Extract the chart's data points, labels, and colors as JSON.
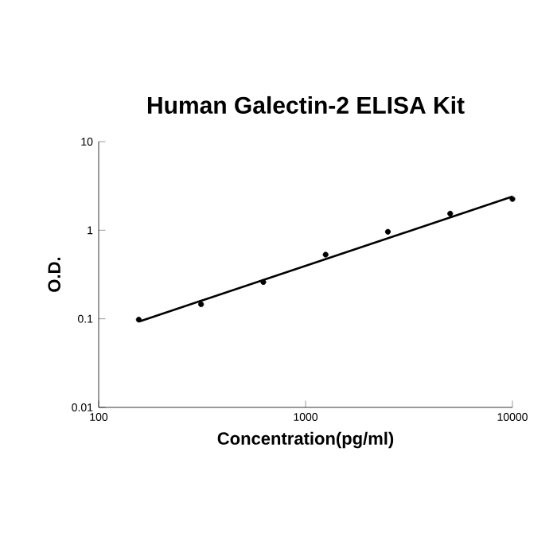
{
  "chart_data": {
    "type": "scatter",
    "title": "Human Galectin-2 ELISA Kit",
    "xlabel": "Concentration(pg/ml)",
    "ylabel": "O.D.",
    "log": "xy",
    "grid": false,
    "xlim": [
      100,
      10000
    ],
    "xticks": [
      100,
      1000,
      10000
    ],
    "ylim": [
      0.01,
      10
    ],
    "yticks": [
      0.01,
      0.1,
      1,
      10
    ],
    "series": [
      {
        "marker": "circle",
        "color": "#000000",
        "x": [
          156.25,
          312.5,
          625,
          1250,
          2500,
          5000,
          10000
        ],
        "values": [
          0.098,
          0.146,
          0.26,
          0.53,
          0.96,
          1.54,
          2.25
        ]
      },
      {
        "type": "line",
        "marker": "none",
        "color": "#000000",
        "x": [
          156.25,
          10000
        ],
        "values": [
          0.093,
          2.4
        ]
      }
    ]
  }
}
